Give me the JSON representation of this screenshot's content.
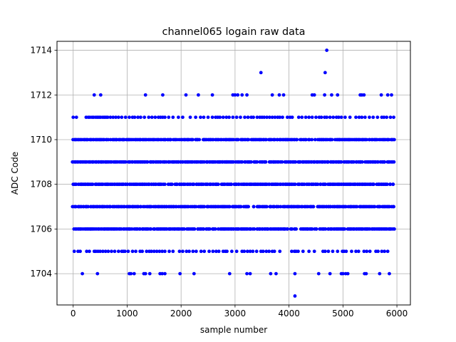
{
  "chart_data": {
    "type": "scatter",
    "title": "channel065 logain raw data",
    "xlabel": "sample number",
    "ylabel": "ADC Code",
    "xlim": [
      -300,
      6250
    ],
    "ylim": [
      1702.6,
      1714.4
    ],
    "xticks": [
      0,
      1000,
      2000,
      3000,
      4000,
      5000,
      6000
    ],
    "yticks": [
      1704,
      1706,
      1708,
      1710,
      1712,
      1714
    ],
    "grid": true,
    "marker_color": "#0000ff",
    "series": [
      {
        "name": "",
        "dense_levels": [
          {
            "y": 1706,
            "x_range": [
              0,
              5940
            ]
          },
          {
            "y": 1707,
            "x_range": [
              0,
              5940
            ]
          },
          {
            "y": 1708,
            "x_range": [
              0,
              5940
            ]
          },
          {
            "y": 1709,
            "x_range": [
              0,
              5940
            ]
          },
          {
            "y": 1710,
            "x_range": [
              0,
              5940
            ]
          }
        ],
        "sparse_points": {
          "1703": [
            4110
          ],
          "1704": [
            170,
            450,
            1040,
            1070,
            1130,
            1310,
            1340,
            1420,
            1610,
            1650,
            1700,
            1980,
            2240,
            2900,
            3220,
            3280,
            3660,
            3760,
            4110,
            4550,
            4760,
            4970,
            5000,
            5050,
            5090,
            5400,
            5430,
            5680,
            5860
          ],
          "1705": [
            20,
            90,
            130,
            250,
            300,
            390,
            420,
            460,
            500,
            550,
            600,
            650,
            710,
            770,
            840,
            900,
            930,
            960,
            1020,
            1100,
            1160,
            1240,
            1280,
            1360,
            1410,
            1450,
            1500,
            1550,
            1600,
            1650,
            1700,
            1780,
            1850,
            1970,
            2030,
            2100,
            2150,
            2220,
            2280,
            2370,
            2430,
            2520,
            2590,
            2650,
            2700,
            2780,
            2820,
            2850,
            2940,
            3030,
            3130,
            3170,
            3230,
            3280,
            3330,
            3400,
            3480,
            3520,
            3580,
            3630,
            3690,
            3730,
            3830,
            4050,
            4100,
            4130,
            4170,
            4260,
            4370,
            4470,
            4630,
            4670,
            4730,
            4810,
            4900,
            4990,
            5020,
            5060,
            5160,
            5240,
            5290,
            5390,
            5440,
            5500,
            5610,
            5650,
            5720,
            5770,
            5830
          ],
          "1711": [
            0,
            60,
            240,
            280,
            310,
            350,
            380,
            420,
            450,
            480,
            510,
            550,
            580,
            610,
            640,
            690,
            740,
            790,
            840,
            900,
            970,
            1040,
            1100,
            1140,
            1200,
            1250,
            1320,
            1400,
            1460,
            1520,
            1580,
            1620,
            1660,
            1700,
            1770,
            1850,
            1950,
            2030,
            2170,
            2270,
            2360,
            2420,
            2500,
            2580,
            2640,
            2680,
            2720,
            2780,
            2840,
            2890,
            2960,
            3030,
            3100,
            3180,
            3240,
            3300,
            3340,
            3410,
            3460,
            3500,
            3540,
            3590,
            3640,
            3690,
            3740,
            3790,
            3830,
            3880,
            3970,
            4020,
            4060,
            4180,
            4240,
            4310,
            4370,
            4430,
            4500,
            4560,
            4600,
            4660,
            4700,
            4760,
            4820,
            4880,
            4920,
            4970,
            5040,
            5130,
            5240,
            5300,
            5350,
            5410,
            5490,
            5560,
            5640,
            5720,
            5760,
            5810,
            5880,
            5940
          ],
          "1712": [
            390,
            510,
            1340,
            1660,
            2090,
            2320,
            2580,
            2960,
            3000,
            3050,
            3130,
            3220,
            3690,
            3820,
            3900,
            4430,
            4470,
            4660,
            4790,
            4900,
            5320,
            5350,
            5390,
            5710,
            5830,
            5900
          ],
          "1713": [
            3480,
            4670
          ],
          "1714": [
            4700
          ]
        }
      }
    ]
  }
}
